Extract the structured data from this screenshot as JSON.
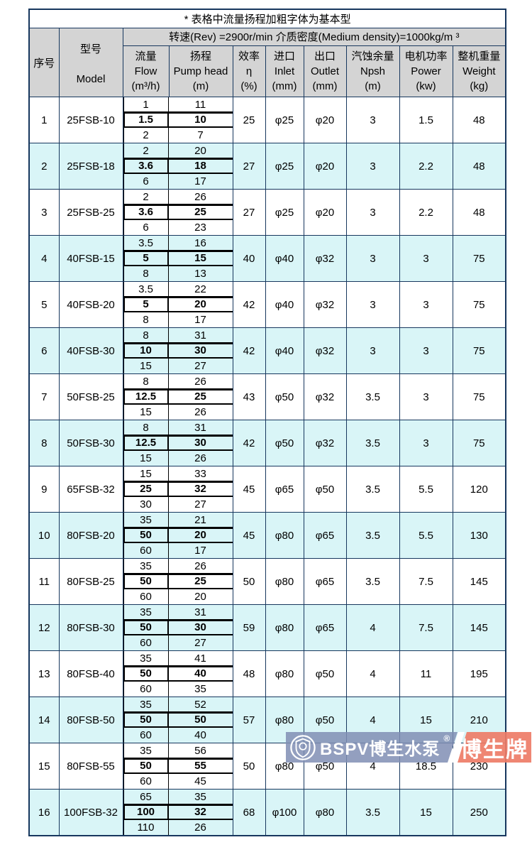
{
  "note": "* 表格中流量扬程加粗字体为基本型",
  "spec_header": "转速(Rev) =2900r/min  介质密度(Medium density)=1000kg/m ³",
  "columns": {
    "seq": "序号",
    "model_cn": "型号",
    "model_en": "Model",
    "flow": {
      "cn": "流量",
      "en": "Flow",
      "unit": "(m³/h)"
    },
    "head": {
      "cn": "扬程",
      "en": "Pump head",
      "unit": "(m)"
    },
    "eff": {
      "cn": "效率",
      "en": "η",
      "unit": "(%)"
    },
    "inlet": {
      "cn": "进口",
      "en": "Inlet",
      "unit": "(mm)"
    },
    "outlet": {
      "cn": "出口",
      "en": "Outlet",
      "unit": "(mm)"
    },
    "npsh": {
      "cn": "汽蚀余量",
      "en": "Npsh",
      "unit": "(m)"
    },
    "power": {
      "cn": "电机功率",
      "en": "Power",
      "unit": "(kw)"
    },
    "weight": {
      "cn": "整机重量",
      "en": "Weight",
      "unit": "(kg)"
    }
  },
  "rows": [
    {
      "seq": "1",
      "model": "25FSB-10",
      "flows": [
        "1",
        "1.5",
        "2"
      ],
      "heads": [
        "11",
        "10",
        "7"
      ],
      "eff": "25",
      "inlet": "φ25",
      "outlet": "φ20",
      "npsh": "3",
      "power": "1.5",
      "weight": "48"
    },
    {
      "seq": "2",
      "model": "25FSB-18",
      "flows": [
        "2",
        "3.6",
        "6"
      ],
      "heads": [
        "20",
        "18",
        "17"
      ],
      "eff": "27",
      "inlet": "φ25",
      "outlet": "φ20",
      "npsh": "3",
      "power": "2.2",
      "weight": "48"
    },
    {
      "seq": "3",
      "model": "25FSB-25",
      "flows": [
        "2",
        "3.6",
        "6"
      ],
      "heads": [
        "26",
        "25",
        "23"
      ],
      "eff": "27",
      "inlet": "φ25",
      "outlet": "φ20",
      "npsh": "3",
      "power": "2.2",
      "weight": "48"
    },
    {
      "seq": "4",
      "model": "40FSB-15",
      "flows": [
        "3.5",
        "5",
        "8"
      ],
      "heads": [
        "16",
        "15",
        "13"
      ],
      "eff": "40",
      "inlet": "φ40",
      "outlet": "φ32",
      "npsh": "3",
      "power": "3",
      "weight": "75"
    },
    {
      "seq": "5",
      "model": "40FSB-20",
      "flows": [
        "3.5",
        "5",
        "8"
      ],
      "heads": [
        "22",
        "20",
        "17"
      ],
      "eff": "42",
      "inlet": "φ40",
      "outlet": "φ32",
      "npsh": "3",
      "power": "3",
      "weight": "75"
    },
    {
      "seq": "6",
      "model": "40FSB-30",
      "flows": [
        "8",
        "10",
        "15"
      ],
      "heads": [
        "31",
        "30",
        "27"
      ],
      "eff": "42",
      "inlet": "φ40",
      "outlet": "φ32",
      "npsh": "3",
      "power": "3",
      "weight": "75"
    },
    {
      "seq": "7",
      "model": "50FSB-25",
      "flows": [
        "8",
        "12.5",
        "15"
      ],
      "heads": [
        "26",
        "25",
        "26"
      ],
      "eff": "43",
      "inlet": "φ50",
      "outlet": "φ32",
      "npsh": "3.5",
      "power": "3",
      "weight": "75"
    },
    {
      "seq": "8",
      "model": "50FSB-30",
      "flows": [
        "8",
        "12.5",
        "15"
      ],
      "heads": [
        "31",
        "30",
        "26"
      ],
      "eff": "42",
      "inlet": "φ50",
      "outlet": "φ32",
      "npsh": "3.5",
      "power": "3",
      "weight": "75"
    },
    {
      "seq": "9",
      "model": "65FSB-32",
      "flows": [
        "15",
        "25",
        "30"
      ],
      "heads": [
        "33",
        "32",
        "27"
      ],
      "eff": "45",
      "inlet": "φ65",
      "outlet": "φ50",
      "npsh": "3.5",
      "power": "5.5",
      "weight": "120"
    },
    {
      "seq": "10",
      "model": "80FSB-20",
      "flows": [
        "35",
        "50",
        "60"
      ],
      "heads": [
        "21",
        "20",
        "17"
      ],
      "eff": "45",
      "inlet": "φ80",
      "outlet": "φ65",
      "npsh": "3.5",
      "power": "5.5",
      "weight": "130"
    },
    {
      "seq": "11",
      "model": "80FSB-25",
      "flows": [
        "35",
        "50",
        "60"
      ],
      "heads": [
        "26",
        "25",
        "20"
      ],
      "eff": "50",
      "inlet": "φ80",
      "outlet": "φ65",
      "npsh": "3.5",
      "power": "7.5",
      "weight": "145"
    },
    {
      "seq": "12",
      "model": "80FSB-30",
      "flows": [
        "35",
        "50",
        "60"
      ],
      "heads": [
        "31",
        "30",
        "27"
      ],
      "eff": "59",
      "inlet": "φ80",
      "outlet": "φ65",
      "npsh": "4",
      "power": "7.5",
      "weight": "145"
    },
    {
      "seq": "13",
      "model": "80FSB-40",
      "flows": [
        "35",
        "50",
        "60"
      ],
      "heads": [
        "41",
        "40",
        "35"
      ],
      "eff": "48",
      "inlet": "φ80",
      "outlet": "φ50",
      "npsh": "4",
      "power": "11",
      "weight": "195"
    },
    {
      "seq": "14",
      "model": "80FSB-50",
      "flows": [
        "35",
        "50",
        "60"
      ],
      "heads": [
        "52",
        "50",
        "40"
      ],
      "eff": "57",
      "inlet": "φ80",
      "outlet": "φ50",
      "npsh": "4",
      "power": "15",
      "weight": "210"
    },
    {
      "seq": "15",
      "model": "80FSB-55",
      "flows": [
        "35",
        "50",
        "60"
      ],
      "heads": [
        "56",
        "55",
        "45"
      ],
      "eff": "50",
      "inlet": "φ80",
      "outlet": "φ50",
      "npsh": "4",
      "power": "18.5",
      "weight": "230"
    },
    {
      "seq": "16",
      "model": "100FSB-32",
      "flows": [
        "65",
        "100",
        "110"
      ],
      "heads": [
        "35",
        "32",
        "26"
      ],
      "eff": "68",
      "inlet": "φ100",
      "outlet": "φ80",
      "npsh": "3.5",
      "power": "15",
      "weight": "250"
    }
  ],
  "watermark": {
    "brand": "BSPV博生水泵",
    "reg": "®",
    "badge": "博生牌"
  },
  "colors": {
    "border": "#17375E",
    "header_bg": "#D4D4D4",
    "stripe_bg": "#D9F5F7",
    "watermark_blue": "#808EB4",
    "watermark_red": "#EE7C67"
  }
}
